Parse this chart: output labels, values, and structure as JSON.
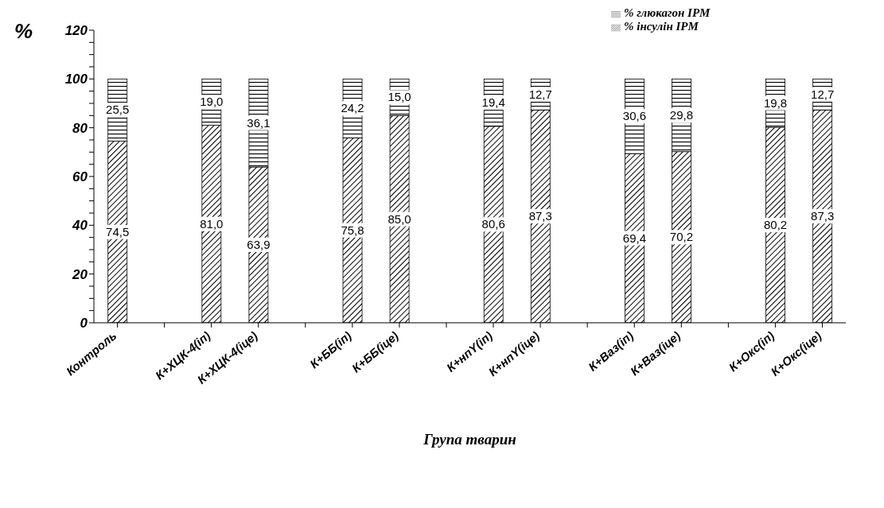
{
  "chart_data": {
    "type": "bar",
    "stacked": true,
    "ylabel": "%",
    "xlabel": "Група тварин",
    "legend": "top right",
    "grid": false,
    "categories": [
      "Контроль",
      null,
      "К+ХЦК-4(іп)",
      "К+ХЦК-4(іце)",
      null,
      "К+ББ(іп)",
      "К+ББ(іце)",
      null,
      "К+нпY(іп)",
      "К+нпY(іце)",
      null,
      "К+Ваз(іп)",
      "К+Ваз(іце)",
      null,
      "К+Окс(іп)",
      "К+Окс(іце)"
    ],
    "series": [
      {
        "name": "% інсулін IPM",
        "color": "#000000",
        "values": [
          74.5,
          null,
          81.0,
          63.9,
          null,
          75.8,
          85.0,
          null,
          80.6,
          87.3,
          null,
          69.4,
          70.2,
          null,
          80.2,
          87.3
        ],
        "value_labels": [
          "74,5",
          null,
          "81,0",
          "63,9",
          null,
          "75,8",
          "85,0",
          null,
          "80,6",
          "87,3",
          null,
          "69,4",
          "70,2",
          null,
          "80,2",
          "87,3"
        ]
      },
      {
        "name": "% глюкагон IPM",
        "color": "#000000",
        "values": [
          25.5,
          null,
          19.0,
          36.1,
          null,
          24.2,
          15.0,
          null,
          19.4,
          12.7,
          null,
          30.6,
          29.8,
          null,
          19.8,
          12.7
        ],
        "value_labels": [
          "25,5",
          null,
          "19,0",
          "36,1",
          null,
          "24,2",
          "15,0",
          null,
          "19,4",
          "12,7",
          null,
          "30,6",
          "29,8",
          null,
          "19,8",
          "12,7"
        ]
      }
    ],
    "ylim": [
      0,
      120
    ],
    "yticks": [
      0,
      {
        "value": 5,
        "label": null
      },
      {
        "value": 10,
        "label": null
      },
      {
        "value": 15,
        "label": null
      },
      20,
      {
        "value": 25,
        "label": null
      },
      {
        "value": 30,
        "label": null
      },
      {
        "value": 35,
        "label": null
      },
      40,
      {
        "value": 45,
        "label": null
      },
      {
        "value": 50,
        "label": null
      },
      {
        "value": 55,
        "label": null
      },
      60,
      {
        "value": 65,
        "label": null
      },
      {
        "value": 70,
        "label": null
      },
      {
        "value": 75,
        "label": null
      },
      80,
      {
        "value": 85,
        "label": null
      },
      {
        "value": 90,
        "label": null
      },
      {
        "value": 95,
        "label": null
      },
      100,
      {
        "value": 105,
        "label": null
      },
      {
        "value": 110,
        "label": null
      },
      {
        "value": 115,
        "label": null
      },
      120
    ]
  }
}
